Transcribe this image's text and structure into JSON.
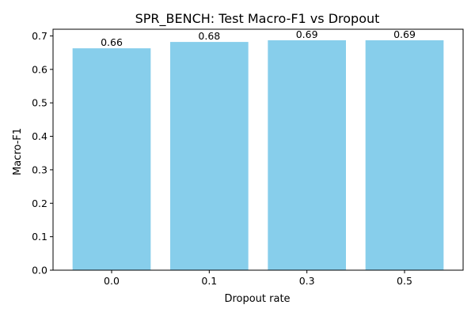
{
  "chart_data": {
    "type": "bar",
    "title": "SPR_BENCH: Test Macro-F1 vs Dropout",
    "xlabel": "Dropout rate",
    "ylabel": "Macro-F1",
    "categories": [
      "0.0",
      "0.1",
      "0.3",
      "0.5"
    ],
    "values": [
      0.663,
      0.682,
      0.687,
      0.687
    ],
    "data_labels": [
      "0.66",
      "0.68",
      "0.69",
      "0.69"
    ],
    "ylim": [
      0,
      0.72
    ],
    "yticks": [
      0.0,
      0.1,
      0.2,
      0.3,
      0.4,
      0.5,
      0.6,
      0.7
    ],
    "ytick_labels": [
      "0.0",
      "0.1",
      "0.2",
      "0.3",
      "0.4",
      "0.5",
      "0.6",
      "0.7"
    ],
    "bar_color": "#87ceeb",
    "grid": false,
    "legend": "none"
  }
}
